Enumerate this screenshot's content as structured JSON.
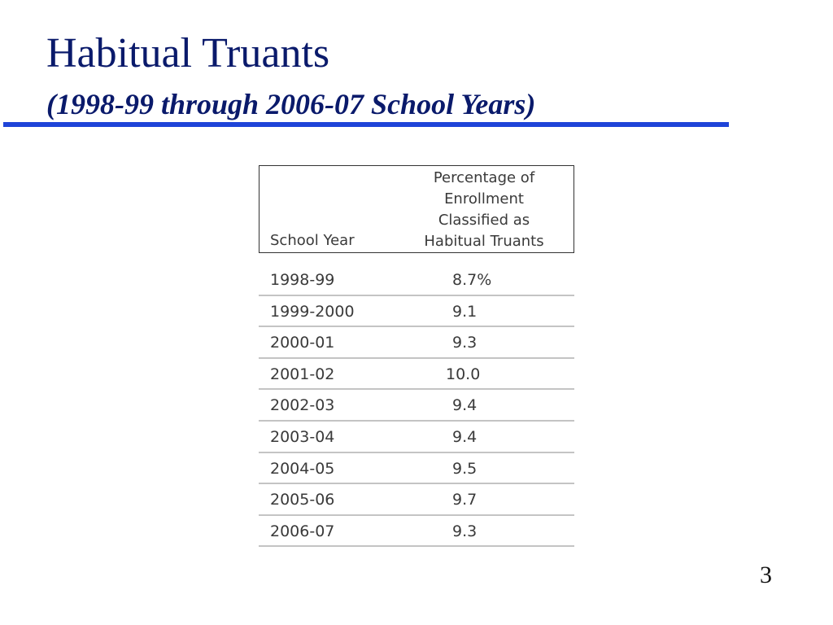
{
  "slide": {
    "title": "Habitual Truants",
    "subtitle": "(1998-99 through 2006-07 School Years)",
    "page_number": "3",
    "accent_color": "#1f44d8",
    "title_color": "#0a1a6b"
  },
  "table": {
    "headers": {
      "year": "School Year",
      "percentage_lines": [
        "Percentage of",
        "Enrollment",
        "Classified as",
        "Habitual Truants"
      ]
    },
    "rows": [
      {
        "year": "1998-99",
        "value": "8.7%"
      },
      {
        "year": "1999-2000",
        "value": "9.1"
      },
      {
        "year": "2000-01",
        "value": "9.3"
      },
      {
        "year": "2001-02",
        "value": "10.0"
      },
      {
        "year": "2002-03",
        "value": "9.4"
      },
      {
        "year": "2003-04",
        "value": "9.4"
      },
      {
        "year": "2004-05",
        "value": "9.5"
      },
      {
        "year": "2005-06",
        "value": "9.7"
      },
      {
        "year": "2006-07",
        "value": "9.3"
      }
    ]
  }
}
